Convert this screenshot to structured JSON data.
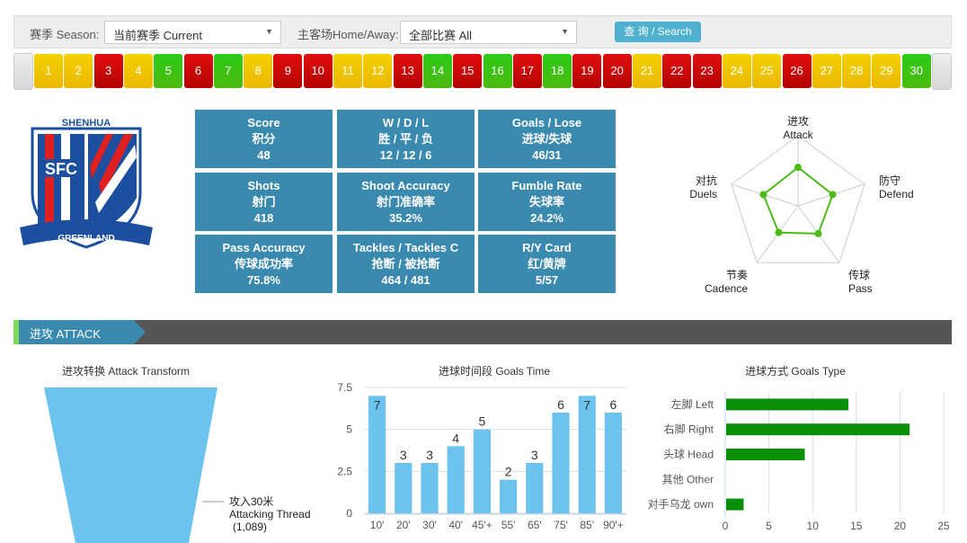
{
  "filter": {
    "season_label": "赛季 Season:",
    "season_value": "当前赛季 Current",
    "home_label": "主客场Home/Away:",
    "home_value": "全部比赛 All",
    "search_label": "查 询 / Search"
  },
  "rounds": [
    {
      "n": "1",
      "r": "D"
    },
    {
      "n": "2",
      "r": "D"
    },
    {
      "n": "3",
      "r": "W"
    },
    {
      "n": "4",
      "r": "D"
    },
    {
      "n": "5",
      "r": "L"
    },
    {
      "n": "6",
      "r": "W"
    },
    {
      "n": "7",
      "r": "L"
    },
    {
      "n": "8",
      "r": "D"
    },
    {
      "n": "9",
      "r": "W"
    },
    {
      "n": "10",
      "r": "W"
    },
    {
      "n": "11",
      "r": "D"
    },
    {
      "n": "12",
      "r": "D"
    },
    {
      "n": "13",
      "r": "W"
    },
    {
      "n": "14",
      "r": "L"
    },
    {
      "n": "15",
      "r": "W"
    },
    {
      "n": "16",
      "r": "L"
    },
    {
      "n": "17",
      "r": "W"
    },
    {
      "n": "18",
      "r": "L"
    },
    {
      "n": "19",
      "r": "W"
    },
    {
      "n": "20",
      "r": "W"
    },
    {
      "n": "21",
      "r": "D"
    },
    {
      "n": "22",
      "r": "W"
    },
    {
      "n": "23",
      "r": "W"
    },
    {
      "n": "24",
      "r": "D"
    },
    {
      "n": "25",
      "r": "D"
    },
    {
      "n": "26",
      "r": "W"
    },
    {
      "n": "27",
      "r": "D"
    },
    {
      "n": "28",
      "r": "D"
    },
    {
      "n": "29",
      "r": "D"
    },
    {
      "n": "30",
      "r": "L"
    }
  ],
  "result_colors": {
    "W": "#d40808",
    "D": "#f0c800",
    "L": "#3cc414"
  },
  "logo": {
    "text_top": "SHENHUA",
    "text_mid": "SFC",
    "text_side": "SINCE 1993",
    "text_banner": "GREENLAND"
  },
  "stats": [
    {
      "en": "Score",
      "cn": "积分",
      "val": "48"
    },
    {
      "en": "W / D / L",
      "cn": "胜 / 平 / 负",
      "val": "12 / 12 / 6"
    },
    {
      "en": "Goals / Lose",
      "cn": "进球/失球",
      "val": "46/31"
    },
    {
      "en": "Shots",
      "cn": "射门",
      "val": "418"
    },
    {
      "en": "Shoot Accuracy",
      "cn": "射门准确率",
      "val": "35.2%"
    },
    {
      "en": "Fumble Rate",
      "cn": "失球率",
      "val": "24.2%"
    },
    {
      "en": "Pass Accuracy",
      "cn": "传球成功率",
      "val": "75.8%"
    },
    {
      "en": "Tackles / Tackles C",
      "cn": "抢断 / 被抢断",
      "val": "464 / 481"
    },
    {
      "en": "R/Y Card",
      "cn": "红/黄牌",
      "val": "5/57"
    }
  ],
  "radar": {
    "color": "#4cbb17",
    "axes": [
      {
        "cn": "进攻",
        "en": "Attack",
        "value": 0.55
      },
      {
        "cn": "防守",
        "en": "Defend",
        "value": 0.52
      },
      {
        "cn": "传球",
        "en": "Pass",
        "value": 0.49
      },
      {
        "cn": "节奏",
        "en": "Cadence",
        "value": 0.47
      },
      {
        "cn": "对抗",
        "en": "Duels",
        "value": 0.52
      }
    ]
  },
  "section": {
    "title": "进攻 ATTACK"
  },
  "chart_data": [
    {
      "type": "funnel",
      "title": "进攻转换 Attack Transform",
      "stages": [
        {
          "label_cn": "攻入30米",
          "label_en": "Attacking Thread",
          "value_text": "(1,089)",
          "value": 1089
        }
      ],
      "color": "#6cc3ee"
    },
    {
      "type": "bar",
      "title": "进球时间段 Goals Time",
      "categories": [
        "10'",
        "20'",
        "30'",
        "40'",
        "45'+",
        "55'",
        "65'",
        "75'",
        "85'",
        "90'+"
      ],
      "values": [
        7,
        3,
        3,
        4,
        5,
        2,
        3,
        6,
        7,
        6
      ],
      "yticks": [
        "0",
        "2.5",
        "5",
        "7.5"
      ],
      "ylim": [
        0,
        7.5
      ],
      "grid": true,
      "color": "#6cc3ee"
    },
    {
      "type": "bar",
      "orientation": "horizontal",
      "title": "进球方式 Goals Type",
      "categories": [
        "左脚 Left",
        "右脚 Right",
        "头球 Head",
        "其他 Other",
        "对手乌龙 own"
      ],
      "values": [
        14,
        21,
        9,
        0,
        2
      ],
      "xticks": [
        "0",
        "5",
        "10",
        "15",
        "20",
        "25"
      ],
      "xlim": [
        0,
        25
      ],
      "grid": true,
      "color": "#0a8f0a"
    }
  ]
}
